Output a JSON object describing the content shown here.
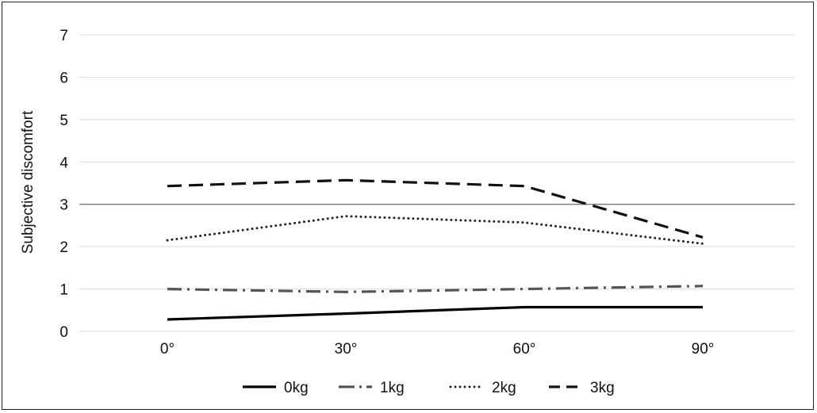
{
  "chart_data": {
    "type": "line",
    "title": "",
    "xlabel": "",
    "ylabel": "Subjective discomfort",
    "categories": [
      "0°",
      "30°",
      "60°",
      "90°"
    ],
    "ylim": [
      0,
      7
    ],
    "yticks": [
      "0",
      "1",
      "2",
      "3",
      "4",
      "5",
      "6",
      "7"
    ],
    "grid": true,
    "legend_position": "bottom",
    "series": [
      {
        "name": "0kg",
        "values": [
          0.28,
          0.42,
          0.57,
          0.57
        ],
        "style": "solid",
        "color": "#000000"
      },
      {
        "name": "1kg",
        "values": [
          1.0,
          0.93,
          1.0,
          1.07
        ],
        "style": "dash-dot",
        "color": "#555555"
      },
      {
        "name": "2kg",
        "values": [
          2.15,
          2.72,
          2.57,
          2.07
        ],
        "style": "dotted",
        "color": "#222222"
      },
      {
        "name": "3kg",
        "values": [
          3.43,
          3.57,
          3.43,
          2.22
        ],
        "style": "dashed",
        "color": "#111111"
      }
    ]
  }
}
